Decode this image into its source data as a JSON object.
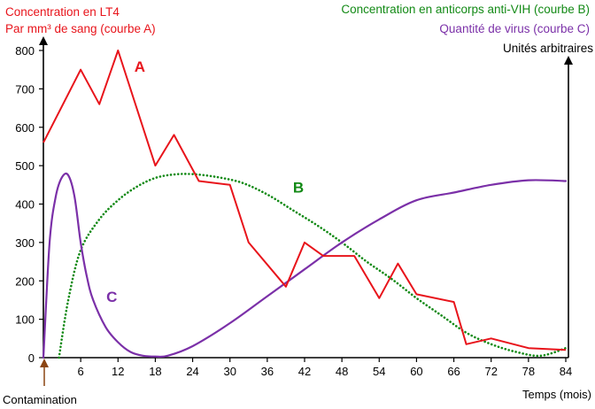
{
  "chart_data": {
    "type": "line",
    "title_left": [
      "Concentration en LT4",
      "Par mm³ de sang (courbe A)"
    ],
    "title_right": [
      "Concentration en anticorps anti-VIH (courbe B)",
      "Quantité de virus (courbe C)"
    ],
    "right_axis_label": "Unités arbitraires",
    "xlabel": "Temps (mois)",
    "contamination_label": "Contamination",
    "xticks": [
      6,
      12,
      18,
      24,
      30,
      36,
      42,
      48,
      54,
      60,
      66,
      72,
      78,
      84
    ],
    "yticks": [
      0,
      100,
      200,
      300,
      400,
      500,
      600,
      700,
      800
    ],
    "xlim": [
      0,
      84
    ],
    "ylim": [
      0,
      800
    ],
    "grid": false,
    "colors": {
      "A": "#e8141b",
      "B": "#138a16",
      "C": "#7b30a8",
      "arrow": "#8b4513"
    },
    "series": [
      {
        "name": "A",
        "style": "solid",
        "x": [
          0,
          6,
          9,
          12,
          18,
          21,
          25,
          30,
          33,
          39,
          42,
          45,
          50,
          54,
          57,
          60,
          66,
          68,
          72,
          78,
          84
        ],
        "y": [
          560,
          750,
          660,
          800,
          500,
          580,
          460,
          450,
          300,
          185,
          300,
          265,
          265,
          155,
          245,
          165,
          145,
          35,
          50,
          25,
          20
        ]
      },
      {
        "name": "B",
        "style": "dotted",
        "x": [
          2.5,
          4,
          6,
          9,
          12,
          15,
          18,
          21,
          24,
          28,
          32,
          36,
          40,
          44,
          48,
          52,
          56,
          60,
          64,
          68,
          72,
          76,
          80,
          84
        ],
        "y": [
          0,
          150,
          280,
          360,
          410,
          445,
          468,
          477,
          478,
          470,
          455,
          425,
          385,
          345,
          300,
          250,
          205,
          155,
          110,
          65,
          35,
          15,
          5,
          25
        ]
      },
      {
        "name": "C",
        "style": "solid",
        "x": [
          0,
          1,
          2,
          3,
          4,
          5,
          6,
          7,
          8,
          10,
          12,
          14,
          16,
          18,
          20,
          24,
          30,
          36,
          42,
          48,
          54,
          60,
          66,
          72,
          78,
          84
        ],
        "y": [
          0,
          300,
          420,
          470,
          475,
          420,
          300,
          210,
          150,
          80,
          40,
          15,
          5,
          3,
          5,
          30,
          90,
          160,
          230,
          300,
          360,
          410,
          430,
          450,
          462,
          460
        ]
      }
    ],
    "curve_labels": [
      {
        "text": "A",
        "x": 15.5,
        "y": 745
      },
      {
        "text": "B",
        "x": 41,
        "y": 430
      },
      {
        "text": "C",
        "x": 11,
        "y": 145
      }
    ]
  }
}
